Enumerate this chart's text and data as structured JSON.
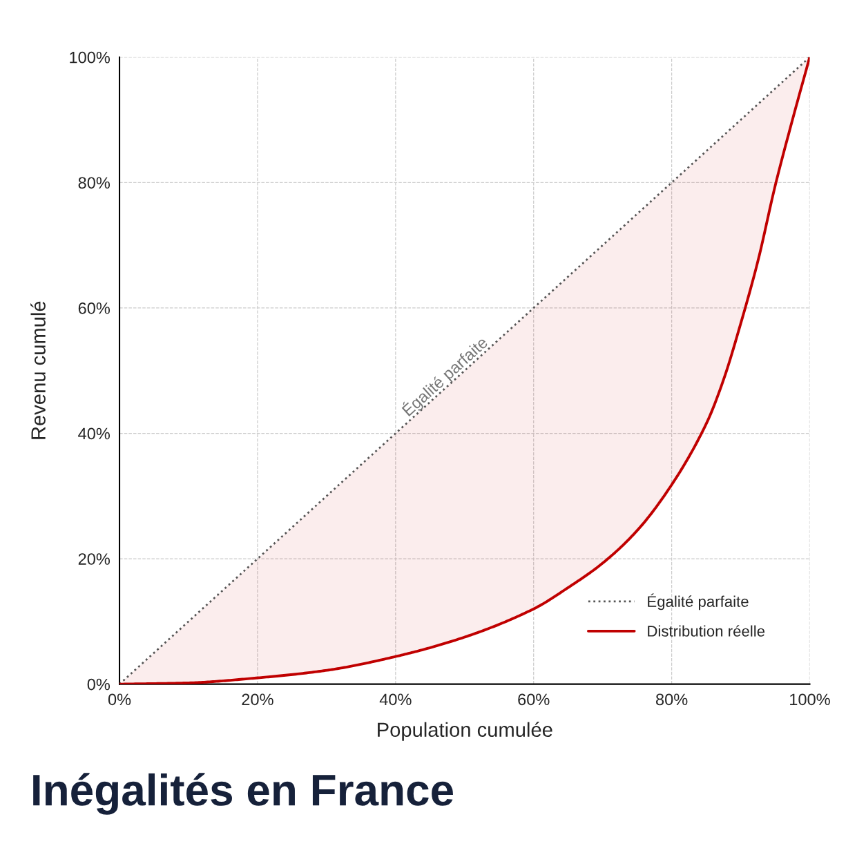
{
  "chart_data": {
    "type": "line",
    "title": "Inégalités en France",
    "xlabel": "Population cumulée",
    "ylabel": "Revenu cumulé",
    "x": [
      0,
      10,
      20,
      30,
      40,
      50,
      60,
      65,
      70,
      75,
      80,
      85,
      87.5,
      90,
      92.5,
      95,
      97.5,
      100
    ],
    "series": [
      {
        "name": "Égalité parfaite",
        "color": "#555555",
        "line_style": "dotted",
        "x": [
          0,
          100
        ],
        "values": [
          0,
          100
        ]
      },
      {
        "name": "Distribution réelle",
        "color": "#c00000",
        "line_style": "solid",
        "values": [
          0,
          0.2,
          1.0,
          2.2,
          4.4,
          7.5,
          12.0,
          15.4,
          19.3,
          24.5,
          31.8,
          41.5,
          48.5,
          57.5,
          67.5,
          79.5,
          90,
          100
        ]
      }
    ],
    "annotations": [
      {
        "text": "Égalité parfaite",
        "x": 48,
        "y": 48
      }
    ],
    "xlim": [
      0,
      100
    ],
    "ylim": [
      0,
      100
    ],
    "xticks": [
      {
        "value": 0,
        "label": "0%"
      },
      {
        "value": 20,
        "label": "20%"
      },
      {
        "value": 40,
        "label": "40%"
      },
      {
        "value": 60,
        "label": "60%"
      },
      {
        "value": 80,
        "label": "80%"
      },
      {
        "value": 100,
        "label": "100%"
      }
    ],
    "yticks": [
      {
        "value": 0,
        "label": "0%"
      },
      {
        "value": 20,
        "label": "20%"
      },
      {
        "value": 40,
        "label": "40%"
      },
      {
        "value": 60,
        "label": "60%"
      },
      {
        "value": 80,
        "label": "80%"
      },
      {
        "value": 100,
        "label": "100%"
      }
    ],
    "grid": true,
    "legend": "bottom right"
  }
}
